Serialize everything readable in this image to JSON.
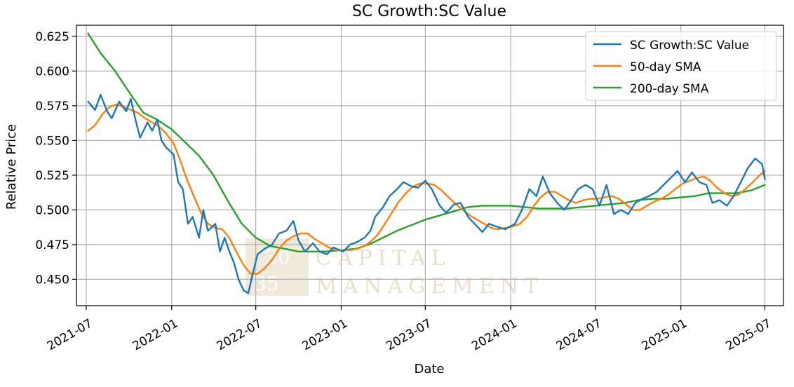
{
  "chart_data": {
    "type": "line",
    "title": "SC Growth:SC Value",
    "xlabel": "Date",
    "ylabel": "Relative Price",
    "x_tick_labels": [
      "2021-07",
      "2022-01",
      "2022-07",
      "2023-01",
      "2023-07",
      "2024-01",
      "2024-07",
      "2025-01",
      "2025-07"
    ],
    "y_tick_labels": [
      "0.450",
      "0.475",
      "0.500",
      "0.525",
      "0.550",
      "0.575",
      "0.600",
      "0.625"
    ],
    "y_ticks": [
      0.45,
      0.475,
      0.5,
      0.525,
      0.55,
      0.575,
      0.6,
      0.625
    ],
    "xlim": [
      "2021-06-10",
      "2025-08-10"
    ],
    "ylim": [
      0.431,
      0.633
    ],
    "grid": true,
    "legend_position": "top-right",
    "series": [
      {
        "name": "SC Growth:SC Value",
        "color": "#1f77b4",
        "points": [
          [
            "2021-07-05",
            0.578
          ],
          [
            "2021-07-20",
            0.572
          ],
          [
            "2021-08-01",
            0.583
          ],
          [
            "2021-08-15",
            0.571
          ],
          [
            "2021-08-25",
            0.566
          ],
          [
            "2021-09-10",
            0.578
          ],
          [
            "2021-09-25",
            0.571
          ],
          [
            "2021-10-05",
            0.58
          ],
          [
            "2021-10-15",
            0.565
          ],
          [
            "2021-10-25",
            0.552
          ],
          [
            "2021-11-10",
            0.563
          ],
          [
            "2021-11-20",
            0.557
          ],
          [
            "2021-12-01",
            0.565
          ],
          [
            "2021-12-10",
            0.55
          ],
          [
            "2021-12-20",
            0.545
          ],
          [
            "2022-01-05",
            0.54
          ],
          [
            "2022-01-15",
            0.52
          ],
          [
            "2022-01-25",
            0.515
          ],
          [
            "2022-02-05",
            0.49
          ],
          [
            "2022-02-15",
            0.495
          ],
          [
            "2022-03-01",
            0.48
          ],
          [
            "2022-03-10",
            0.5
          ],
          [
            "2022-03-20",
            0.485
          ],
          [
            "2022-04-05",
            0.49
          ],
          [
            "2022-04-15",
            0.47
          ],
          [
            "2022-04-25",
            0.48
          ],
          [
            "2022-05-05",
            0.47
          ],
          [
            "2022-05-15",
            0.462
          ],
          [
            "2022-05-25",
            0.45
          ],
          [
            "2022-06-05",
            0.442
          ],
          [
            "2022-06-15",
            0.44
          ],
          [
            "2022-06-25",
            0.455
          ],
          [
            "2022-07-05",
            0.468
          ],
          [
            "2022-07-20",
            0.472
          ],
          [
            "2022-08-05",
            0.475
          ],
          [
            "2022-08-20",
            0.483
          ],
          [
            "2022-09-05",
            0.485
          ],
          [
            "2022-09-20",
            0.492
          ],
          [
            "2022-10-01",
            0.478
          ],
          [
            "2022-10-15",
            0.47
          ],
          [
            "2022-11-01",
            0.476
          ],
          [
            "2022-11-15",
            0.47
          ],
          [
            "2022-12-01",
            0.468
          ],
          [
            "2022-12-15",
            0.473
          ],
          [
            "2023-01-05",
            0.47
          ],
          [
            "2023-01-20",
            0.475
          ],
          [
            "2023-02-05",
            0.477
          ],
          [
            "2023-02-20",
            0.48
          ],
          [
            "2023-03-05",
            0.485
          ],
          [
            "2023-03-15",
            0.495
          ],
          [
            "2023-04-01",
            0.502
          ],
          [
            "2023-04-15",
            0.51
          ],
          [
            "2023-05-01",
            0.515
          ],
          [
            "2023-05-15",
            0.52
          ],
          [
            "2023-06-01",
            0.517
          ],
          [
            "2023-06-15",
            0.516
          ],
          [
            "2023-07-01",
            0.521
          ],
          [
            "2023-07-15",
            0.515
          ],
          [
            "2023-08-01",
            0.503
          ],
          [
            "2023-08-15",
            0.498
          ],
          [
            "2023-09-01",
            0.504
          ],
          [
            "2023-09-15",
            0.505
          ],
          [
            "2023-10-01",
            0.495
          ],
          [
            "2023-10-15",
            0.49
          ],
          [
            "2023-11-01",
            0.484
          ],
          [
            "2023-11-15",
            0.49
          ],
          [
            "2023-12-01",
            0.488
          ],
          [
            "2023-12-20",
            0.486
          ],
          [
            "2024-01-10",
            0.49
          ],
          [
            "2024-01-25",
            0.5
          ],
          [
            "2024-02-10",
            0.515
          ],
          [
            "2024-02-25",
            0.51
          ],
          [
            "2024-03-10",
            0.524
          ],
          [
            "2024-03-25",
            0.512
          ],
          [
            "2024-04-10",
            0.505
          ],
          [
            "2024-04-25",
            0.5
          ],
          [
            "2024-05-10",
            0.507
          ],
          [
            "2024-05-25",
            0.515
          ],
          [
            "2024-06-10",
            0.518
          ],
          [
            "2024-06-25",
            0.515
          ],
          [
            "2024-07-10",
            0.503
          ],
          [
            "2024-07-25",
            0.518
          ],
          [
            "2024-08-10",
            0.497
          ],
          [
            "2024-08-25",
            0.5
          ],
          [
            "2024-09-10",
            0.497
          ],
          [
            "2024-09-25",
            0.505
          ],
          [
            "2024-10-10",
            0.508
          ],
          [
            "2024-10-25",
            0.51
          ],
          [
            "2024-11-10",
            0.513
          ],
          [
            "2024-11-25",
            0.518
          ],
          [
            "2024-12-10",
            0.523
          ],
          [
            "2024-12-25",
            0.528
          ],
          [
            "2025-01-10",
            0.52
          ],
          [
            "2025-01-25",
            0.527
          ],
          [
            "2025-02-10",
            0.52
          ],
          [
            "2025-02-25",
            0.518
          ],
          [
            "2025-03-10",
            0.505
          ],
          [
            "2025-03-25",
            0.507
          ],
          [
            "2025-04-10",
            0.503
          ],
          [
            "2025-04-25",
            0.51
          ],
          [
            "2025-05-10",
            0.52
          ],
          [
            "2025-05-25",
            0.53
          ],
          [
            "2025-06-10",
            0.537
          ],
          [
            "2025-06-25",
            0.533
          ],
          [
            "2025-07-01",
            0.522
          ]
        ]
      },
      {
        "name": "50-day SMA",
        "color": "#ff7f0e",
        "points": [
          [
            "2021-07-05",
            0.557
          ],
          [
            "2021-07-20",
            0.561
          ],
          [
            "2021-08-05",
            0.569
          ],
          [
            "2021-08-20",
            0.574
          ],
          [
            "2021-09-05",
            0.576
          ],
          [
            "2021-09-20",
            0.574
          ],
          [
            "2021-10-05",
            0.572
          ],
          [
            "2021-10-20",
            0.57
          ],
          [
            "2021-11-05",
            0.566
          ],
          [
            "2021-11-20",
            0.563
          ],
          [
            "2021-12-05",
            0.56
          ],
          [
            "2021-12-20",
            0.555
          ],
          [
            "2022-01-05",
            0.548
          ],
          [
            "2022-01-20",
            0.535
          ],
          [
            "2022-02-05",
            0.52
          ],
          [
            "2022-02-20",
            0.508
          ],
          [
            "2022-03-05",
            0.498
          ],
          [
            "2022-03-20",
            0.49
          ],
          [
            "2022-04-05",
            0.487
          ],
          [
            "2022-04-20",
            0.486
          ],
          [
            "2022-05-05",
            0.48
          ],
          [
            "2022-05-20",
            0.47
          ],
          [
            "2022-06-05",
            0.46
          ],
          [
            "2022-06-20",
            0.454
          ],
          [
            "2022-07-05",
            0.454
          ],
          [
            "2022-07-20",
            0.458
          ],
          [
            "2022-08-05",
            0.464
          ],
          [
            "2022-08-20",
            0.472
          ],
          [
            "2022-09-05",
            0.478
          ],
          [
            "2022-09-20",
            0.481
          ],
          [
            "2022-10-05",
            0.483
          ],
          [
            "2022-10-20",
            0.483
          ],
          [
            "2022-11-05",
            0.479
          ],
          [
            "2022-11-20",
            0.476
          ],
          [
            "2022-12-05",
            0.473
          ],
          [
            "2022-12-20",
            0.471
          ],
          [
            "2023-01-05",
            0.471
          ],
          [
            "2023-01-20",
            0.471
          ],
          [
            "2023-02-05",
            0.472
          ],
          [
            "2023-02-20",
            0.474
          ],
          [
            "2023-03-05",
            0.477
          ],
          [
            "2023-03-20",
            0.482
          ],
          [
            "2023-04-05",
            0.49
          ],
          [
            "2023-04-20",
            0.498
          ],
          [
            "2023-05-05",
            0.506
          ],
          [
            "2023-05-20",
            0.512
          ],
          [
            "2023-06-05",
            0.517
          ],
          [
            "2023-06-20",
            0.519
          ],
          [
            "2023-07-05",
            0.519
          ],
          [
            "2023-07-20",
            0.518
          ],
          [
            "2023-08-05",
            0.514
          ],
          [
            "2023-08-20",
            0.509
          ],
          [
            "2023-09-05",
            0.504
          ],
          [
            "2023-09-20",
            0.5
          ],
          [
            "2023-10-05",
            0.496
          ],
          [
            "2023-10-20",
            0.493
          ],
          [
            "2023-11-05",
            0.49
          ],
          [
            "2023-11-20",
            0.487
          ],
          [
            "2023-12-05",
            0.486
          ],
          [
            "2023-12-20",
            0.487
          ],
          [
            "2024-01-05",
            0.488
          ],
          [
            "2024-01-20",
            0.49
          ],
          [
            "2024-02-05",
            0.495
          ],
          [
            "2024-02-20",
            0.503
          ],
          [
            "2024-03-05",
            0.509
          ],
          [
            "2024-03-20",
            0.513
          ],
          [
            "2024-04-05",
            0.513
          ],
          [
            "2024-04-20",
            0.51
          ],
          [
            "2024-05-05",
            0.507
          ],
          [
            "2024-05-20",
            0.505
          ],
          [
            "2024-06-05",
            0.507
          ],
          [
            "2024-06-20",
            0.508
          ],
          [
            "2024-07-05",
            0.508
          ],
          [
            "2024-07-20",
            0.509
          ],
          [
            "2024-08-05",
            0.51
          ],
          [
            "2024-08-20",
            0.508
          ],
          [
            "2024-09-05",
            0.504
          ],
          [
            "2024-09-20",
            0.5
          ],
          [
            "2024-10-05",
            0.5
          ],
          [
            "2024-10-20",
            0.503
          ],
          [
            "2024-11-05",
            0.506
          ],
          [
            "2024-11-20",
            0.508
          ],
          [
            "2024-12-05",
            0.511
          ],
          [
            "2024-12-20",
            0.515
          ],
          [
            "2025-01-05",
            0.519
          ],
          [
            "2025-01-20",
            0.521
          ],
          [
            "2025-02-05",
            0.523
          ],
          [
            "2025-02-20",
            0.524
          ],
          [
            "2025-03-05",
            0.521
          ],
          [
            "2025-03-20",
            0.516
          ],
          [
            "2025-04-05",
            0.512
          ],
          [
            "2025-04-20",
            0.51
          ],
          [
            "2025-05-05",
            0.511
          ],
          [
            "2025-05-20",
            0.515
          ],
          [
            "2025-06-05",
            0.52
          ],
          [
            "2025-06-20",
            0.525
          ],
          [
            "2025-07-01",
            0.528
          ]
        ]
      },
      {
        "name": "200-day SMA",
        "color": "#2ca02c",
        "points": [
          [
            "2021-07-05",
            0.627
          ],
          [
            "2021-08-01",
            0.613
          ],
          [
            "2021-09-01",
            0.6
          ],
          [
            "2021-10-01",
            0.585
          ],
          [
            "2021-11-01",
            0.57
          ],
          [
            "2021-12-01",
            0.565
          ],
          [
            "2022-01-01",
            0.558
          ],
          [
            "2022-02-01",
            0.548
          ],
          [
            "2022-03-01",
            0.539
          ],
          [
            "2022-04-01",
            0.525
          ],
          [
            "2022-05-01",
            0.507
          ],
          [
            "2022-06-01",
            0.49
          ],
          [
            "2022-07-01",
            0.48
          ],
          [
            "2022-08-01",
            0.474
          ],
          [
            "2022-09-01",
            0.472
          ],
          [
            "2022-10-01",
            0.47
          ],
          [
            "2022-11-01",
            0.47
          ],
          [
            "2022-12-01",
            0.47
          ],
          [
            "2023-01-01",
            0.471
          ],
          [
            "2023-02-01",
            0.472
          ],
          [
            "2023-03-01",
            0.475
          ],
          [
            "2023-04-01",
            0.48
          ],
          [
            "2023-05-01",
            0.485
          ],
          [
            "2023-06-01",
            0.489
          ],
          [
            "2023-07-01",
            0.493
          ],
          [
            "2023-08-01",
            0.496
          ],
          [
            "2023-09-01",
            0.499
          ],
          [
            "2023-10-01",
            0.502
          ],
          [
            "2023-11-01",
            0.503
          ],
          [
            "2023-12-01",
            0.503
          ],
          [
            "2024-01-01",
            0.503
          ],
          [
            "2024-02-01",
            0.502
          ],
          [
            "2024-03-01",
            0.501
          ],
          [
            "2024-04-01",
            0.501
          ],
          [
            "2024-05-01",
            0.501
          ],
          [
            "2024-06-01",
            0.502
          ],
          [
            "2024-07-01",
            0.503
          ],
          [
            "2024-08-01",
            0.504
          ],
          [
            "2024-09-01",
            0.505
          ],
          [
            "2024-10-01",
            0.507
          ],
          [
            "2024-11-01",
            0.508
          ],
          [
            "2024-12-01",
            0.508
          ],
          [
            "2025-01-01",
            0.509
          ],
          [
            "2025-02-01",
            0.51
          ],
          [
            "2025-03-01",
            0.512
          ],
          [
            "2025-04-01",
            0.512
          ],
          [
            "2025-05-01",
            0.512
          ],
          [
            "2025-06-01",
            0.514
          ],
          [
            "2025-07-01",
            0.518
          ]
        ]
      }
    ]
  },
  "watermark": {
    "mark_top": "30",
    "mark_bottom": "35",
    "line1": "CAPITAL",
    "line2": "MANAGEMENT"
  }
}
